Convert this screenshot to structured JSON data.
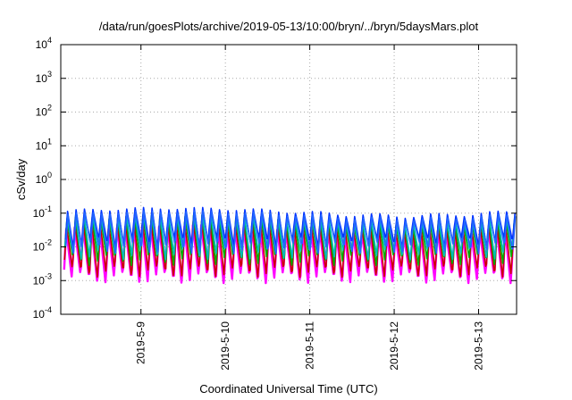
{
  "chart_data": {
    "type": "line",
    "title": "/data/run/goesPlots/archive/2019-05-13/10:00/bryn/../bryn/5daysMars.plot",
    "xlabel": "Coordinated Universal Time (UTC)",
    "ylabel": "cSv/day",
    "y_scale": "log",
    "ylim": [
      0.0001,
      10000
    ],
    "y_ticks": [
      {
        "base": "10",
        "exp": "-4"
      },
      {
        "base": "10",
        "exp": "-3"
      },
      {
        "base": "10",
        "exp": "-2"
      },
      {
        "base": "10",
        "exp": "-1"
      },
      {
        "base": "10",
        "exp": "0"
      },
      {
        "base": "10",
        "exp": "1"
      },
      {
        "base": "10",
        "exp": "2"
      },
      {
        "base": "10",
        "exp": "3"
      },
      {
        "base": "10",
        "exp": "4"
      }
    ],
    "x_range_days": [
      8.05,
      13.45
    ],
    "x_ticks": [
      {
        "label": "2019-5-9",
        "day": 9
      },
      {
        "label": "2019-5-10",
        "day": 10
      },
      {
        "label": "2019-5-11",
        "day": 11
      },
      {
        "label": "2019-5-12",
        "day": 12
      },
      {
        "label": "2019-5-13",
        "day": 13
      }
    ],
    "grid": true,
    "legend": "none",
    "pulse_period_hours": 2.4,
    "series": [
      {
        "color": "#ff00ff",
        "peak": 0.03,
        "trough": 0.0012
      },
      {
        "color": "#cc0000",
        "peak": 0.04,
        "trough": 0.0018
      },
      {
        "color": "#00aa00",
        "peak": 0.06,
        "trough": 0.004
      },
      {
        "color": "#00bbbb",
        "peak": 0.07,
        "trough": 0.006
      },
      {
        "color": "#0033ff",
        "peak": 0.1,
        "trough": 0.013
      },
      {
        "color": "#2266ff",
        "peak": 0.08,
        "trough": 0.009
      }
    ]
  }
}
